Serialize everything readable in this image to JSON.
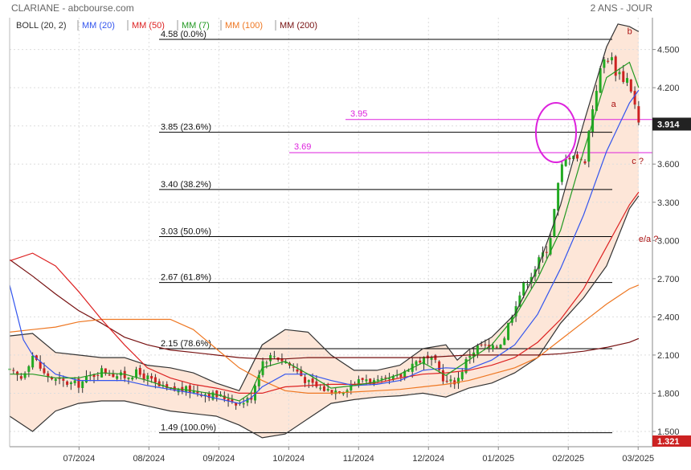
{
  "header": {
    "title": "CLARIANE - abcbourse.com",
    "period": "2 ANS - JOUR"
  },
  "legend": [
    {
      "label": "BOLL (20, 2)",
      "color": "#333333"
    },
    {
      "label": "MM (20)",
      "color": "#3355ee"
    },
    {
      "label": "MM (50)",
      "color": "#dd2222"
    },
    {
      "label": "MM (7)",
      "color": "#229922"
    },
    {
      "label": "MM (100)",
      "color": "#ee7722"
    },
    {
      "label": "MM (200)",
      "color": "#771111"
    }
  ],
  "chart_data": {
    "type": "line",
    "x_ticks": [
      "07/2024",
      "08/2024",
      "09/2024",
      "10/2024",
      "11/2024",
      "12/2024",
      "01/2025",
      "02/2025",
      "03/2025"
    ],
    "y_ticks": [
      "4.500",
      "4.200",
      "3.900",
      "3.600",
      "3.300",
      "3.000",
      "2.700",
      "2.400",
      "2.100",
      "1.800",
      "1.500"
    ],
    "ylim": [
      1.38,
      4.75
    ],
    "xlim": [
      0,
      28
    ],
    "last_price": "3.914",
    "volume_label": "1.321",
    "fibonacci": [
      {
        "price": 4.58,
        "label": "4.58  (0.0%)"
      },
      {
        "price": 3.85,
        "label": "3.85  (23.6%)"
      },
      {
        "price": 3.4,
        "label": "3.40  (38.2%)"
      },
      {
        "price": 3.03,
        "label": "3.03  (50.0%)"
      },
      {
        "price": 2.67,
        "label": "2.67  (61.8%)"
      },
      {
        "price": 2.15,
        "label": "2.15  (78.6%)"
      },
      {
        "price": 1.49,
        "label": "1.49  (100.0%)"
      }
    ],
    "levels": [
      {
        "price": 3.95,
        "label": "3.95"
      },
      {
        "price": 3.69,
        "label": "3.69"
      }
    ],
    "annotations": [
      {
        "text": "b",
        "x": 26.9,
        "y": 4.62
      },
      {
        "text": "a",
        "x": 26.2,
        "y": 4.05
      },
      {
        "text": "c ?",
        "x": 27.1,
        "y": 3.6
      },
      {
        "text": "e/a ?",
        "x": 27.4,
        "y": 2.99
      }
    ],
    "series": [
      {
        "key": "close",
        "color": "#444444",
        "points": [
          [
            0,
            1.97
          ],
          [
            0.5,
            1.92
          ],
          [
            1,
            2.1
          ],
          [
            1.5,
            1.95
          ],
          [
            2,
            1.9
          ],
          [
            2.5,
            1.88
          ],
          [
            3,
            1.87
          ],
          [
            3.5,
            1.93
          ],
          [
            4,
            1.98
          ],
          [
            4.5,
            1.95
          ],
          [
            5,
            1.93
          ],
          [
            5.5,
            1.96
          ],
          [
            6,
            1.92
          ],
          [
            6.5,
            1.85
          ],
          [
            7,
            1.82
          ],
          [
            7.5,
            1.83
          ],
          [
            8,
            1.82
          ],
          [
            8.5,
            1.8
          ],
          [
            9,
            1.78
          ],
          [
            9.5,
            1.76
          ],
          [
            10,
            1.72
          ],
          [
            10.5,
            1.76
          ],
          [
            11,
            2.05
          ],
          [
            11.5,
            2.1
          ],
          [
            12,
            2.05
          ],
          [
            12.5,
            1.98
          ],
          [
            13,
            1.88
          ],
          [
            13.5,
            1.84
          ],
          [
            14,
            1.82
          ],
          [
            14.5,
            1.83
          ],
          [
            15,
            1.88
          ],
          [
            15.5,
            1.92
          ],
          [
            16,
            1.88
          ],
          [
            16.5,
            1.9
          ],
          [
            17,
            1.93
          ],
          [
            17.5,
            2.03
          ],
          [
            18,
            2.07
          ],
          [
            18.5,
            2.05
          ],
          [
            19,
            1.88
          ],
          [
            19.5,
            1.9
          ],
          [
            20,
            2.1
          ],
          [
            20.5,
            2.18
          ],
          [
            21,
            2.14
          ],
          [
            21.5,
            2.22
          ],
          [
            22,
            2.5
          ],
          [
            22.5,
            2.68
          ],
          [
            23,
            2.82
          ],
          [
            23.5,
            2.98
          ],
          [
            24,
            3.55
          ],
          [
            24.5,
            3.72
          ],
          [
            25,
            3.58
          ],
          [
            25.5,
            4.18
          ],
          [
            26,
            4.48
          ],
          [
            26.5,
            4.32
          ],
          [
            27,
            4.26
          ],
          [
            27.4,
            3.91
          ]
        ]
      },
      {
        "key": "boll_up",
        "color": "#333333",
        "points": [
          [
            0,
            2.25
          ],
          [
            1,
            2.27
          ],
          [
            2,
            2.12
          ],
          [
            3,
            2.1
          ],
          [
            4,
            2.08
          ],
          [
            5,
            2.08
          ],
          [
            6,
            2.02
          ],
          [
            7,
            2.0
          ],
          [
            8,
            1.96
          ],
          [
            9,
            1.88
          ],
          [
            10,
            1.82
          ],
          [
            10.5,
            2.0
          ],
          [
            11,
            2.18
          ],
          [
            12,
            2.3
          ],
          [
            13,
            2.28
          ],
          [
            14,
            2.1
          ],
          [
            15,
            1.98
          ],
          [
            16,
            1.98
          ],
          [
            17,
            2.02
          ],
          [
            18,
            2.15
          ],
          [
            19,
            2.18
          ],
          [
            19.5,
            2.06
          ],
          [
            20,
            2.14
          ],
          [
            21,
            2.24
          ],
          [
            22,
            2.42
          ],
          [
            23,
            2.78
          ],
          [
            24,
            3.28
          ],
          [
            25,
            3.92
          ],
          [
            26,
            4.52
          ],
          [
            26.5,
            4.7
          ],
          [
            27,
            4.68
          ],
          [
            27.4,
            4.64
          ]
        ]
      },
      {
        "key": "boll_low",
        "color": "#333333",
        "points": [
          [
            0,
            1.62
          ],
          [
            1,
            1.5
          ],
          [
            2,
            1.66
          ],
          [
            3,
            1.72
          ],
          [
            4,
            1.74
          ],
          [
            5,
            1.74
          ],
          [
            6,
            1.7
          ],
          [
            7,
            1.66
          ],
          [
            8,
            1.64
          ],
          [
            9,
            1.62
          ],
          [
            10,
            1.55
          ],
          [
            11,
            1.45
          ],
          [
            12,
            1.48
          ],
          [
            13,
            1.6
          ],
          [
            14,
            1.72
          ],
          [
            15,
            1.75
          ],
          [
            16,
            1.77
          ],
          [
            17,
            1.78
          ],
          [
            18,
            1.8
          ],
          [
            19,
            1.77
          ],
          [
            20,
            1.84
          ],
          [
            21,
            1.88
          ],
          [
            22,
            1.96
          ],
          [
            23,
            2.08
          ],
          [
            24,
            2.35
          ],
          [
            25,
            2.55
          ],
          [
            26,
            2.8
          ],
          [
            27,
            3.25
          ],
          [
            27.4,
            3.35
          ]
        ]
      },
      {
        "key": "mm20",
        "color": "#3355ee",
        "points": [
          [
            0,
            2.65
          ],
          [
            0.6,
            2.22
          ],
          [
            1,
            2.1
          ],
          [
            2,
            1.95
          ],
          [
            3,
            1.9
          ],
          [
            4,
            1.9
          ],
          [
            5,
            1.9
          ],
          [
            6,
            1.86
          ],
          [
            7,
            1.83
          ],
          [
            8,
            1.8
          ],
          [
            9,
            1.76
          ],
          [
            10,
            1.72
          ],
          [
            10.5,
            1.76
          ],
          [
            11,
            1.85
          ],
          [
            12,
            1.95
          ],
          [
            13,
            1.95
          ],
          [
            14,
            1.9
          ],
          [
            15,
            1.86
          ],
          [
            16,
            1.87
          ],
          [
            17,
            1.9
          ],
          [
            18,
            1.98
          ],
          [
            19,
            2.0
          ],
          [
            20,
            1.99
          ],
          [
            21,
            2.06
          ],
          [
            22,
            2.18
          ],
          [
            23,
            2.42
          ],
          [
            24,
            2.78
          ],
          [
            25,
            3.2
          ],
          [
            26,
            3.7
          ],
          [
            27,
            4.08
          ],
          [
            27.4,
            4.18
          ]
        ]
      },
      {
        "key": "mm50",
        "color": "#dd2222",
        "points": [
          [
            0,
            2.84
          ],
          [
            1,
            2.9
          ],
          [
            2,
            2.8
          ],
          [
            3,
            2.6
          ],
          [
            4,
            2.38
          ],
          [
            5,
            2.18
          ],
          [
            6,
            2.0
          ],
          [
            7,
            1.92
          ],
          [
            8,
            1.87
          ],
          [
            9,
            1.84
          ],
          [
            10,
            1.8
          ],
          [
            11,
            1.8
          ],
          [
            12,
            1.85
          ],
          [
            13,
            1.86
          ],
          [
            14,
            1.87
          ],
          [
            15,
            1.87
          ],
          [
            16,
            1.88
          ],
          [
            17,
            1.92
          ],
          [
            18,
            1.95
          ],
          [
            19,
            1.96
          ],
          [
            20,
            1.98
          ],
          [
            21,
            2.02
          ],
          [
            22,
            2.08
          ],
          [
            23,
            2.2
          ],
          [
            24,
            2.38
          ],
          [
            25,
            2.62
          ],
          [
            26,
            2.95
          ],
          [
            27,
            3.28
          ],
          [
            27.4,
            3.38
          ]
        ]
      },
      {
        "key": "mm7",
        "color": "#229922",
        "points": [
          [
            0,
            1.95
          ],
          [
            1,
            1.95
          ],
          [
            2,
            1.92
          ],
          [
            3,
            1.92
          ],
          [
            4,
            1.96
          ],
          [
            5,
            1.95
          ],
          [
            6,
            1.9
          ],
          [
            7,
            1.84
          ],
          [
            8,
            1.82
          ],
          [
            9,
            1.79
          ],
          [
            10,
            1.74
          ],
          [
            10.5,
            1.8
          ],
          [
            11,
            2.0
          ],
          [
            12,
            2.05
          ],
          [
            13,
            1.95
          ],
          [
            14,
            1.84
          ],
          [
            15,
            1.86
          ],
          [
            16,
            1.89
          ],
          [
            17,
            1.95
          ],
          [
            18,
            2.04
          ],
          [
            19,
            1.94
          ],
          [
            20,
            2.06
          ],
          [
            21,
            2.18
          ],
          [
            22,
            2.4
          ],
          [
            23,
            2.7
          ],
          [
            24,
            3.08
          ],
          [
            25,
            3.7
          ],
          [
            26,
            4.28
          ],
          [
            27,
            4.4
          ],
          [
            27.4,
            4.2
          ]
        ]
      },
      {
        "key": "mm100",
        "color": "#ee7722",
        "points": [
          [
            0,
            2.28
          ],
          [
            1,
            2.3
          ],
          [
            2,
            2.32
          ],
          [
            3,
            2.36
          ],
          [
            4,
            2.38
          ],
          [
            5,
            2.38
          ],
          [
            6,
            2.38
          ],
          [
            7,
            2.38
          ],
          [
            8,
            2.3
          ],
          [
            9,
            2.15
          ],
          [
            10,
            2.0
          ],
          [
            11,
            1.9
          ],
          [
            12,
            1.82
          ],
          [
            13,
            1.8
          ],
          [
            14,
            1.8
          ],
          [
            15,
            1.81
          ],
          [
            16,
            1.82
          ],
          [
            17,
            1.83
          ],
          [
            18,
            1.85
          ],
          [
            19,
            1.87
          ],
          [
            20,
            1.9
          ],
          [
            21,
            1.95
          ],
          [
            22,
            2.0
          ],
          [
            23,
            2.08
          ],
          [
            24,
            2.22
          ],
          [
            25,
            2.36
          ],
          [
            26,
            2.5
          ],
          [
            27,
            2.62
          ],
          [
            27.4,
            2.65
          ]
        ]
      },
      {
        "key": "mm200",
        "color": "#771111",
        "points": [
          [
            0,
            2.85
          ],
          [
            1,
            2.72
          ],
          [
            2,
            2.58
          ],
          [
            3,
            2.45
          ],
          [
            4,
            2.35
          ],
          [
            5,
            2.24
          ],
          [
            6,
            2.18
          ],
          [
            7,
            2.14
          ],
          [
            8,
            2.12
          ],
          [
            9,
            2.1
          ],
          [
            10,
            2.08
          ],
          [
            11,
            2.07
          ],
          [
            12,
            2.07
          ],
          [
            13,
            2.08
          ],
          [
            14,
            2.08
          ],
          [
            15,
            2.08
          ],
          [
            16,
            2.08
          ],
          [
            17,
            2.08
          ],
          [
            18,
            2.08
          ],
          [
            19,
            2.09
          ],
          [
            20,
            2.1
          ],
          [
            21,
            2.1
          ],
          [
            22,
            2.1
          ],
          [
            23,
            2.1
          ],
          [
            24,
            2.11
          ],
          [
            25,
            2.13
          ],
          [
            26,
            2.16
          ],
          [
            27,
            2.2
          ],
          [
            27.4,
            2.23
          ]
        ]
      }
    ]
  }
}
